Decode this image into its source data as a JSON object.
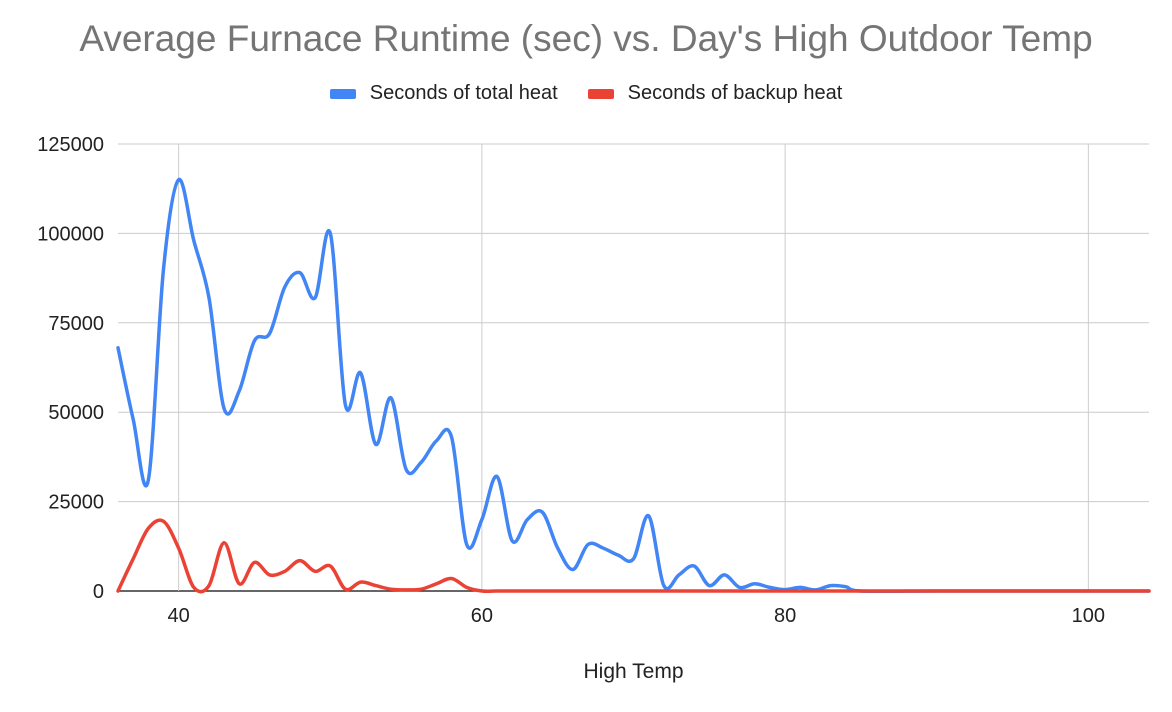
{
  "chart_data": {
    "type": "line",
    "title": "Average Furnace Runtime (sec) vs. Day's High Outdoor Temp",
    "xlabel": "High Temp",
    "ylabel": "",
    "xlim": [
      36,
      104
    ],
    "ylim": [
      0,
      125000
    ],
    "x_ticks": [
      40,
      60,
      80,
      100
    ],
    "y_ticks": [
      0,
      25000,
      50000,
      75000,
      100000,
      125000
    ],
    "grid": true,
    "legend_position": "top",
    "series": [
      {
        "name": "Seconds of total heat",
        "color": "#4285f4",
        "points": [
          [
            36,
            68000
          ],
          [
            37,
            48000
          ],
          [
            38,
            31000
          ],
          [
            39,
            90000
          ],
          [
            40,
            115000
          ],
          [
            41,
            98000
          ],
          [
            42,
            82000
          ],
          [
            43,
            51000
          ],
          [
            44,
            56000
          ],
          [
            45,
            70000
          ],
          [
            46,
            72000
          ],
          [
            47,
            85000
          ],
          [
            48,
            89000
          ],
          [
            49,
            82000
          ],
          [
            50,
            100000
          ],
          [
            51,
            52000
          ],
          [
            52,
            61000
          ],
          [
            53,
            41000
          ],
          [
            54,
            54000
          ],
          [
            55,
            34000
          ],
          [
            56,
            36000
          ],
          [
            57,
            42000
          ],
          [
            58,
            43000
          ],
          [
            59,
            13000
          ],
          [
            60,
            20000
          ],
          [
            61,
            32000
          ],
          [
            62,
            14000
          ],
          [
            63,
            20000
          ],
          [
            64,
            22000
          ],
          [
            65,
            12000
          ],
          [
            66,
            6000
          ],
          [
            67,
            13000
          ],
          [
            68,
            12000
          ],
          [
            69,
            10000
          ],
          [
            70,
            9000
          ],
          [
            71,
            21000
          ],
          [
            72,
            1500
          ],
          [
            73,
            4500
          ],
          [
            74,
            7000
          ],
          [
            75,
            1500
          ],
          [
            76,
            4500
          ],
          [
            77,
            1000
          ],
          [
            78,
            2000
          ],
          [
            79,
            1000
          ],
          [
            80,
            400
          ],
          [
            81,
            1000
          ],
          [
            82,
            300
          ],
          [
            83,
            1500
          ],
          [
            84,
            1200
          ],
          [
            85,
            0
          ],
          [
            90,
            0
          ],
          [
            95,
            0
          ],
          [
            100,
            0
          ],
          [
            104,
            0
          ]
        ]
      },
      {
        "name": "Seconds of backup heat",
        "color": "#ea4335",
        "points": [
          [
            36,
            0
          ],
          [
            37,
            9000
          ],
          [
            38,
            17500
          ],
          [
            39,
            19500
          ],
          [
            40,
            12000
          ],
          [
            41,
            1000
          ],
          [
            42,
            1500
          ],
          [
            43,
            13500
          ],
          [
            44,
            2000
          ],
          [
            45,
            8000
          ],
          [
            46,
            4500
          ],
          [
            47,
            5500
          ],
          [
            48,
            8500
          ],
          [
            49,
            5500
          ],
          [
            50,
            7000
          ],
          [
            51,
            500
          ],
          [
            52,
            2500
          ],
          [
            53,
            1500
          ],
          [
            54,
            500
          ],
          [
            55,
            300
          ],
          [
            56,
            500
          ],
          [
            57,
            2000
          ],
          [
            58,
            3500
          ],
          [
            59,
            1000
          ],
          [
            60,
            0
          ],
          [
            61,
            0
          ],
          [
            62,
            0
          ],
          [
            64,
            0
          ],
          [
            70,
            0
          ],
          [
            80,
            0
          ],
          [
            90,
            0
          ],
          [
            100,
            0
          ],
          [
            104,
            0
          ]
        ]
      }
    ]
  }
}
